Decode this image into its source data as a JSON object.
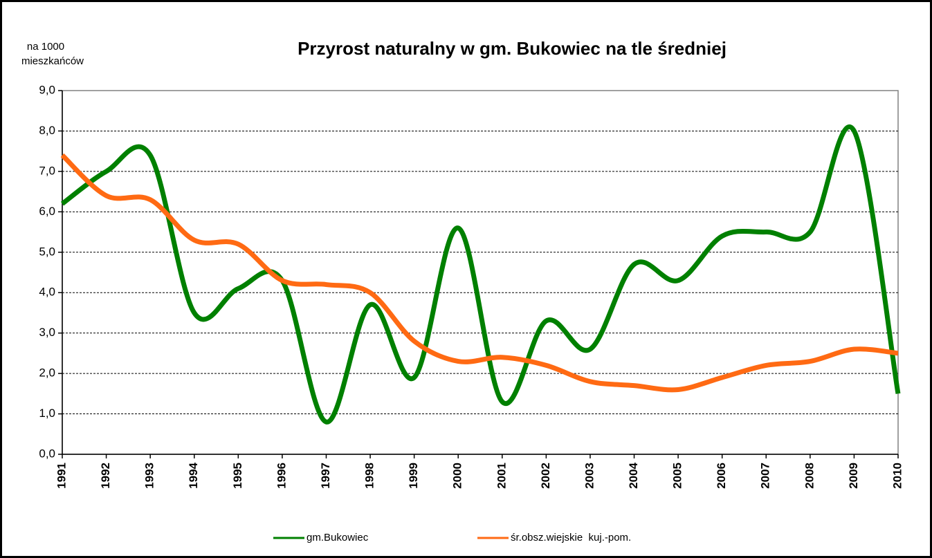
{
  "chart_data": {
    "type": "line",
    "title": "Przyrost naturalny w gm. Bukowiec na tle średniej",
    "y_label": [
      "na 1000",
      "mieszkańców"
    ],
    "categories": [
      "1991",
      "1992",
      "1993",
      "1994",
      "1995",
      "1996",
      "1997",
      "1998",
      "1999",
      "2000",
      "2001",
      "2002",
      "2003",
      "2004",
      "2005",
      "2006",
      "2007",
      "2008",
      "2009",
      "2010"
    ],
    "series": [
      {
        "name": "gm.Bukowiec",
        "color": "#008000",
        "values": [
          6.2,
          7.0,
          7.4,
          3.5,
          4.1,
          4.3,
          0.8,
          3.7,
          1.9,
          5.6,
          1.3,
          3.3,
          2.6,
          4.7,
          4.3,
          5.4,
          5.5,
          5.5,
          8.0,
          1.5
        ]
      },
      {
        "name": "śr.obsz.wiejskie  kuj.-pom.",
        "color": "#ff6a13",
        "values": [
          7.4,
          6.4,
          6.3,
          5.3,
          5.2,
          4.3,
          4.2,
          4.0,
          2.8,
          2.3,
          2.4,
          2.2,
          1.8,
          1.7,
          1.6,
          1.9,
          2.2,
          2.3,
          2.6,
          2.5
        ]
      }
    ],
    "ylim": [
      0,
      9
    ],
    "yticks": [
      {
        "value": 0,
        "label": "0,0"
      },
      {
        "value": 1,
        "label": "1,0"
      },
      {
        "value": 2,
        "label": "2,0"
      },
      {
        "value": 3,
        "label": "3,0"
      },
      {
        "value": 4,
        "label": "4,0"
      },
      {
        "value": 5,
        "label": "5,0"
      },
      {
        "value": 6,
        "label": "6,0"
      },
      {
        "value": 7,
        "label": "7,0"
      },
      {
        "value": 8,
        "label": "8,0"
      },
      {
        "value": 9,
        "label": "9,0"
      }
    ],
    "grid": true,
    "smooth": true,
    "legend": "bottom"
  }
}
